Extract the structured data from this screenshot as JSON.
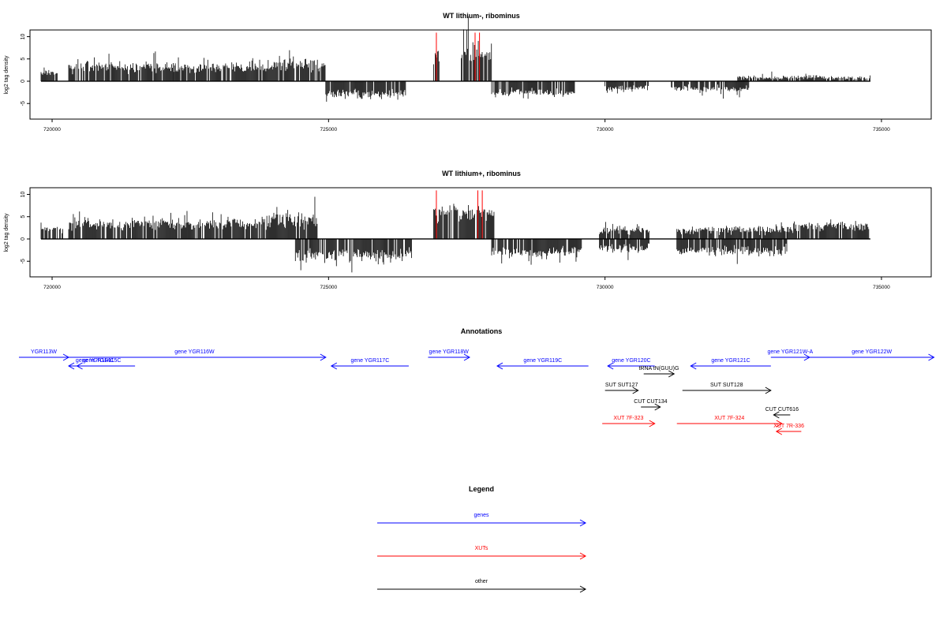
{
  "colors": {
    "genes": "#0000ff",
    "xuts": "#ff0000",
    "other": "#000000",
    "signal": "#000000"
  },
  "chart_data": [
    {
      "type": "bar",
      "title": "WT lithium-, ribominus",
      "ylabel": "log2 tag density",
      "xlim": [
        719600,
        735900
      ],
      "ylim": [
        -8.5,
        11.5
      ],
      "x_ticks": [
        720000,
        725000,
        730000,
        735000
      ],
      "x_tick_labels": [
        "720000",
        "725000",
        "730000",
        "735000"
      ],
      "y_ticks": [
        -5,
        0,
        5,
        10
      ],
      "y_tick_labels": [
        "-5",
        "0",
        "5",
        "10"
      ],
      "baseline_range": [
        719800,
        734800
      ],
      "highlight_lines": [
        726950,
        727650,
        727730
      ],
      "segments": [
        {
          "start": 719800,
          "end": 720100,
          "level": 2,
          "amp": 0.6
        },
        {
          "start": 720300,
          "end": 722200,
          "level": 3.2,
          "amp": 0.7
        },
        {
          "start": 722200,
          "end": 724000,
          "level": 3.0,
          "amp": 0.7
        },
        {
          "start": 724000,
          "end": 724950,
          "level": 3.8,
          "amp": 0.8
        },
        {
          "start": 724950,
          "end": 726400,
          "level": -2.8,
          "amp": 0.7
        },
        {
          "start": 726900,
          "end": 727000,
          "level": 5.5,
          "amp": 0.5
        },
        {
          "start": 727400,
          "end": 727950,
          "level": 6.5,
          "amp": 0.6
        },
        {
          "start": 727950,
          "end": 729450,
          "level": -2.6,
          "amp": 0.7
        },
        {
          "start": 730000,
          "end": 730800,
          "level": -1.6,
          "amp": 0.8
        },
        {
          "start": 731200,
          "end": 732600,
          "level": -1.6,
          "amp": 0.8
        },
        {
          "start": 732400,
          "end": 734800,
          "level": 0.8,
          "amp": 1.2
        }
      ]
    },
    {
      "type": "bar",
      "title": "WT lithium+, ribominus",
      "ylabel": "log2 tag density",
      "xlim": [
        719600,
        735900
      ],
      "ylim": [
        -8.5,
        11.5
      ],
      "x_ticks": [
        720000,
        725000,
        730000,
        735000
      ],
      "x_tick_labels": [
        "720000",
        "725000",
        "730000",
        "735000"
      ],
      "y_ticks": [
        -5,
        0,
        5,
        10
      ],
      "y_tick_labels": [
        "-5",
        "0",
        "5",
        "10"
      ],
      "baseline_range": [
        719800,
        734800
      ],
      "highlight_lines": [
        726950,
        727700,
        727780
      ],
      "segments": [
        {
          "start": 719800,
          "end": 720200,
          "level": 2.2,
          "amp": 0.6
        },
        {
          "start": 720300,
          "end": 722300,
          "level": 3.4,
          "amp": 0.7
        },
        {
          "start": 722300,
          "end": 723800,
          "level": 3.2,
          "amp": 0.7
        },
        {
          "start": 723800,
          "end": 724800,
          "level": 4.2,
          "amp": 0.8
        },
        {
          "start": 724400,
          "end": 726500,
          "level": -3.6,
          "amp": 0.8
        },
        {
          "start": 726900,
          "end": 728000,
          "level": 5.8,
          "amp": 0.6
        },
        {
          "start": 727950,
          "end": 729600,
          "level": -3.0,
          "amp": 0.7
        },
        {
          "start": 729900,
          "end": 730800,
          "level": 2.0,
          "amp": 0.9
        },
        {
          "start": 729900,
          "end": 730800,
          "level": -2.0,
          "amp": 0.9
        },
        {
          "start": 731300,
          "end": 733300,
          "level": 2.0,
          "amp": 0.9
        },
        {
          "start": 731300,
          "end": 733300,
          "level": -2.6,
          "amp": 0.8
        },
        {
          "start": 733300,
          "end": 734800,
          "level": 2.8,
          "amp": 0.8
        }
      ]
    }
  ],
  "annotations": {
    "title": "Annotations",
    "items": [
      {
        "label": "YGR113W",
        "start": 719400,
        "end": 720300,
        "strand": "+",
        "color": "genes",
        "row": 0,
        "label_row": 0
      },
      {
        "label": "gene YGR114C",
        "start": 720450,
        "end": 721100,
        "strand": "-",
        "color": "genes",
        "row": 1,
        "label_row": 1
      },
      {
        "label": "gene YGR115C",
        "start": 720300,
        "end": 721500,
        "strand": "-",
        "color": "genes",
        "row": 1,
        "label_row": 1
      },
      {
        "label": "gene YGR116W",
        "start": 720200,
        "end": 724950,
        "strand": "+",
        "color": "genes",
        "row": 0,
        "label_row": 0
      },
      {
        "label": "gene YGR117C",
        "start": 725050,
        "end": 726450,
        "strand": "-",
        "color": "genes",
        "row": 1,
        "label_row": 1
      },
      {
        "label": "gene YGR118W",
        "start": 726800,
        "end": 727550,
        "strand": "+",
        "color": "genes",
        "row": 0,
        "label_row": 0
      },
      {
        "label": "gene YGR119C",
        "start": 728050,
        "end": 729700,
        "strand": "-",
        "color": "genes",
        "row": 1,
        "label_row": 1
      },
      {
        "label": "gene YGR120C",
        "start": 730050,
        "end": 730900,
        "strand": "-",
        "color": "genes",
        "row": 1,
        "label_row": 1
      },
      {
        "label": "tRNA tN(GUU)G",
        "start": 730700,
        "end": 731250,
        "strand": "+",
        "color": "other",
        "row": 2,
        "label_row": 2
      },
      {
        "label": "gene YGR121C",
        "start": 731550,
        "end": 733000,
        "strand": "-",
        "color": "genes",
        "row": 1,
        "label_row": 1
      },
      {
        "label": "gene YGR121W-A",
        "start": 733000,
        "end": 733700,
        "strand": "+",
        "color": "genes",
        "row": 0,
        "label_row": 0
      },
      {
        "label": "gene YGR122W",
        "start": 733700,
        "end": 735950,
        "strand": "+",
        "color": "genes",
        "row": 0,
        "label_row": 0
      },
      {
        "label": "SUT SUT127",
        "start": 730000,
        "end": 730600,
        "strand": "+",
        "color": "other",
        "row": 3,
        "label_row": 3
      },
      {
        "label": "SUT SUT128",
        "start": 731400,
        "end": 733000,
        "strand": "+",
        "color": "other",
        "row": 3,
        "label_row": 3
      },
      {
        "label": "CUT CUT134",
        "start": 730650,
        "end": 731000,
        "strand": "+",
        "color": "other",
        "row": 4,
        "label_row": 4
      },
      {
        "label": "CUT CUT616",
        "start": 733050,
        "end": 733350,
        "strand": "-",
        "color": "other",
        "row": 5,
        "label_row": 5
      },
      {
        "label": "XUT 7F-323",
        "start": 729950,
        "end": 730900,
        "strand": "+",
        "color": "xuts",
        "row": 6,
        "label_row": 6
      },
      {
        "label": "XUT 7F-324",
        "start": 731300,
        "end": 733200,
        "strand": "+",
        "color": "xuts",
        "row": 6,
        "label_row": 6
      },
      {
        "label": "XUT 7R-336",
        "start": 733100,
        "end": 733550,
        "strand": "-",
        "color": "xuts",
        "row": 7,
        "label_row": 7
      }
    ]
  },
  "legend": {
    "title": "Legend",
    "entries": [
      {
        "label": "genes",
        "color": "genes"
      },
      {
        "label": "XUTs",
        "color": "xuts"
      },
      {
        "label": "other",
        "color": "other"
      }
    ]
  }
}
